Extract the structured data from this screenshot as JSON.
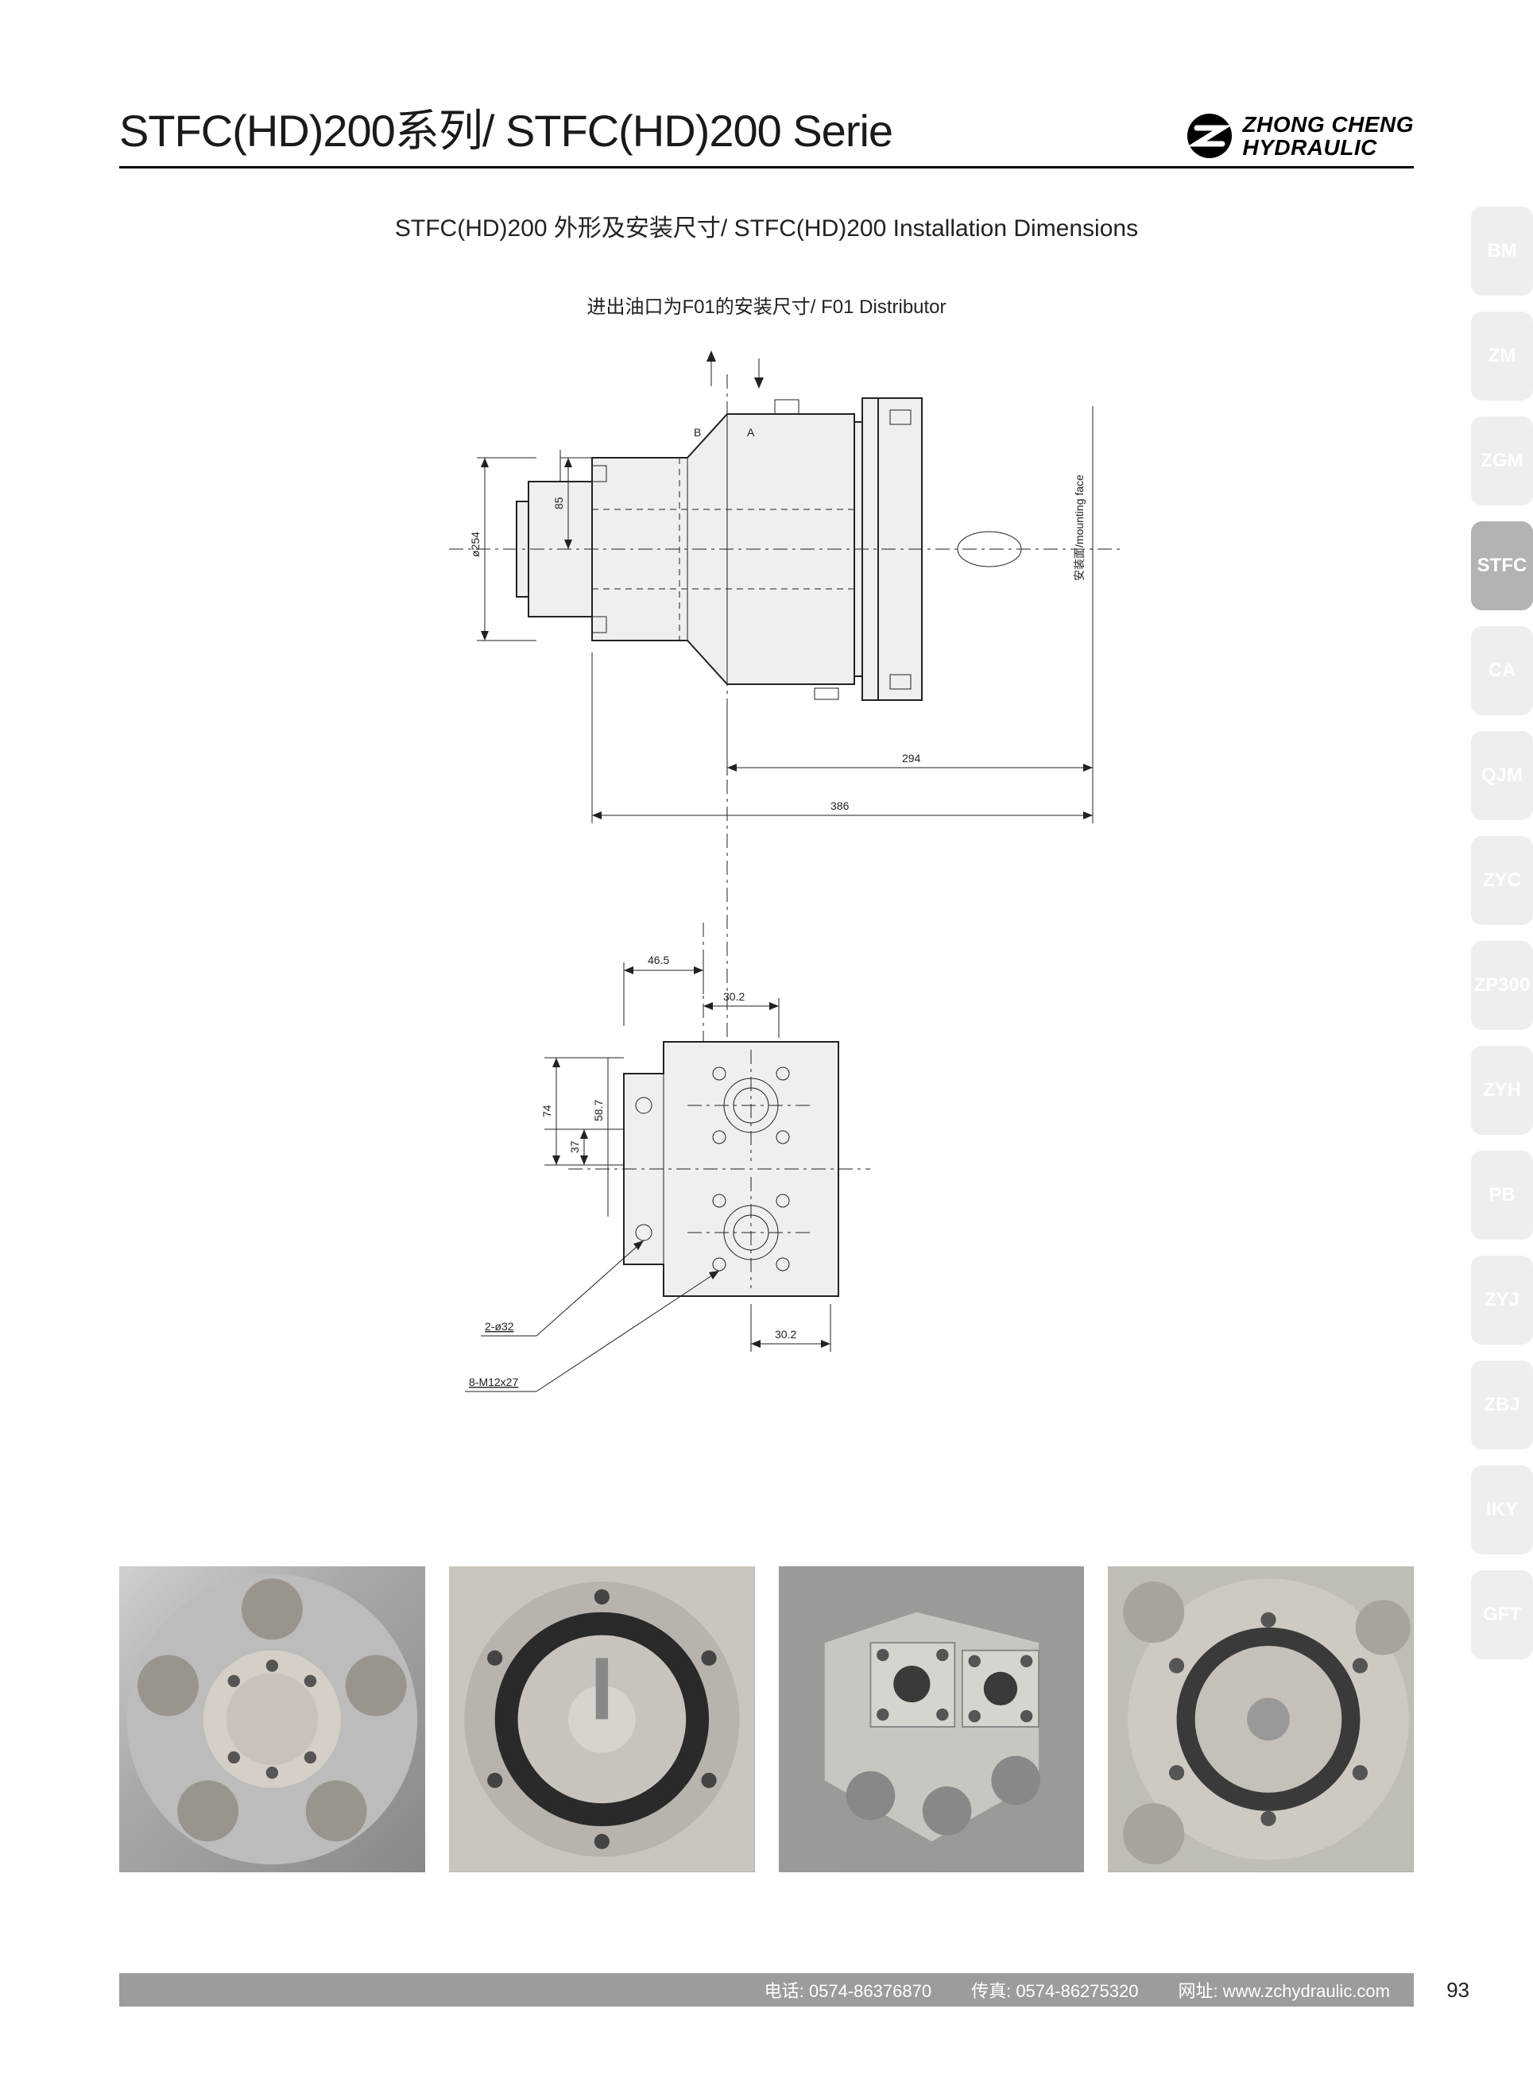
{
  "header": {
    "title": "STFC(HD)200系列/ STFC(HD)200 Serie",
    "logo_line1": "ZHONG CHENG",
    "logo_line2": "HYDRAULIC"
  },
  "subtitle": "STFC(HD)200 外形及安装尺寸/ STFC(HD)200 Installation Dimensions",
  "drawing_caption": "进出油口为F01的安装尺寸/ F01 Distributor",
  "drawing_top": {
    "labels": {
      "B": "B",
      "A": "A",
      "mounting_face": "安装面/mounting face"
    },
    "dimensions": {
      "dia254": "ø254",
      "d85": "85",
      "d294": "294",
      "d386": "386"
    }
  },
  "drawing_bottom": {
    "dimensions": {
      "d46_5": "46.5",
      "d30_2a": "30.2",
      "d30_2b": "30.2",
      "d74": "74",
      "d37": "37",
      "d58_7a": "58.7",
      "d58_7b": "58.7",
      "hole_dia": "2-ø32",
      "thread": "8-M12x27"
    }
  },
  "side_tabs": [
    {
      "label": "BM",
      "active": false
    },
    {
      "label": "ZM",
      "active": false
    },
    {
      "label": "ZGM",
      "active": false
    },
    {
      "label": "STFC",
      "active": true
    },
    {
      "label": "CA",
      "active": false
    },
    {
      "label": "QJM",
      "active": false
    },
    {
      "label": "ZYC",
      "active": false
    },
    {
      "label": "ZP300",
      "active": false
    },
    {
      "label": "ZYH",
      "active": false
    },
    {
      "label": "PB",
      "active": false
    },
    {
      "label": "ZYJ",
      "active": false
    },
    {
      "label": "ZBJ",
      "active": false
    },
    {
      "label": "IKY",
      "active": false
    },
    {
      "label": "GFT",
      "active": false
    }
  ],
  "footer": {
    "phone_label": "电话:",
    "phone": "0574-86376870",
    "fax_label": "传真:",
    "fax": "0574-86275320",
    "web_label": "网址:",
    "web": "www.zchydraulic.com"
  },
  "page_number": "93",
  "colors": {
    "tab_inactive_bg": "#eeeeee",
    "tab_active_bg": "#b3b3b3",
    "tab_text": "#ffffff",
    "footer_bg": "#9c9c9c",
    "part_fill": "#efefef",
    "line": "#222222"
  }
}
